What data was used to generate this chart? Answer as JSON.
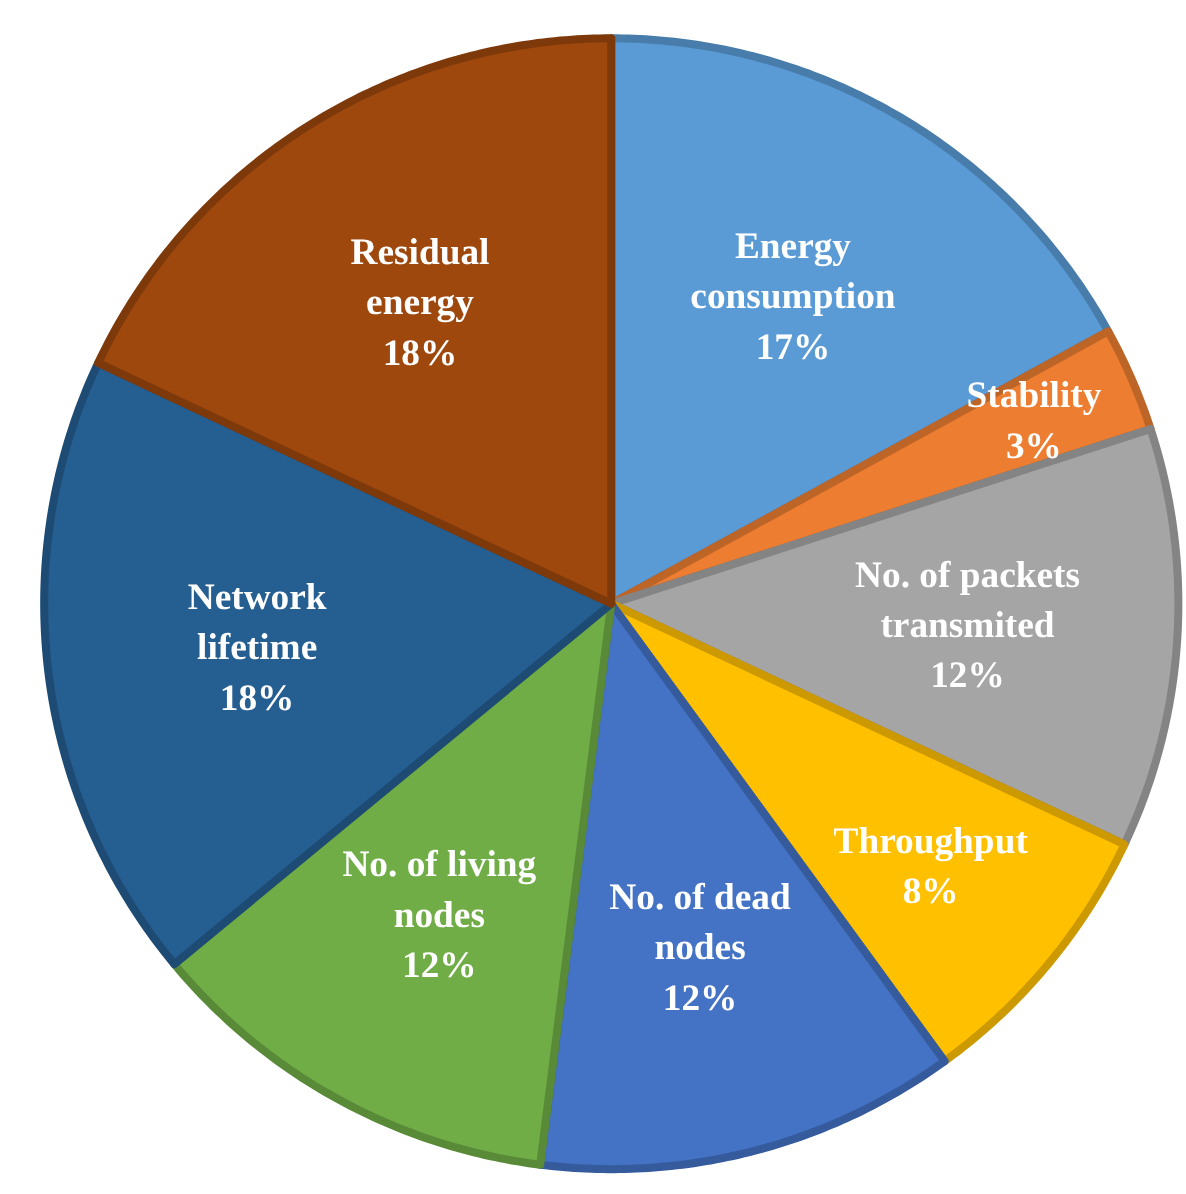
{
  "chart_data": {
    "type": "pie",
    "categories": [
      "Energy consumption",
      "Stability",
      "No. of packets transmited",
      "Throughput",
      "No. of dead nodes",
      "No. of living nodes",
      "Network lifetime",
      "Residual energy"
    ],
    "values": [
      17,
      3,
      12,
      8,
      12,
      12,
      18,
      18
    ],
    "value_labels": [
      "17%",
      "3%",
      "12%",
      "8%",
      "12%",
      "12%",
      "18%",
      "18%"
    ],
    "colors": [
      "#5b9bd5",
      "#ed7d31",
      "#a5a5a5",
      "#ffc000",
      "#4472c4",
      "#70ad47",
      "#255e91",
      "#9e480e"
    ]
  }
}
